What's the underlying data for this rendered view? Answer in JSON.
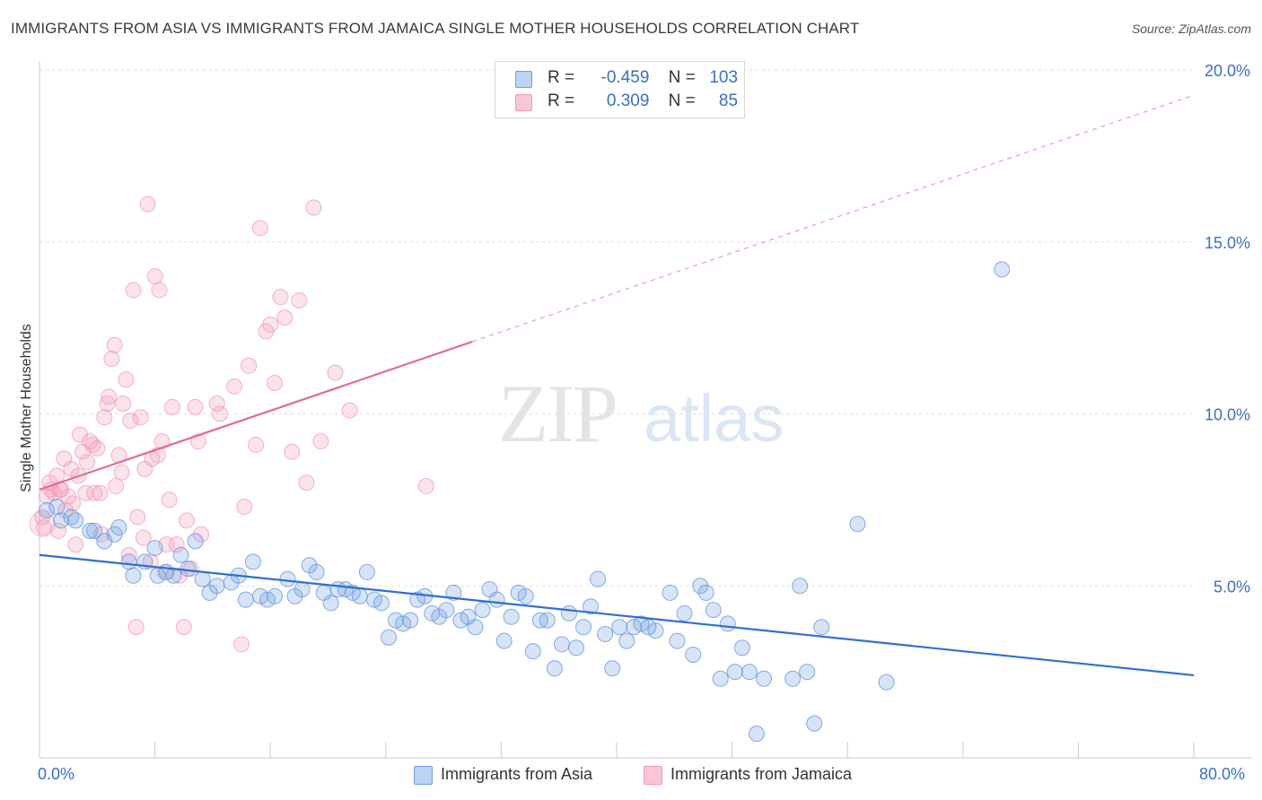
{
  "header": {
    "title": "IMMIGRANTS FROM ASIA VS IMMIGRANTS FROM JAMAICA SINGLE MOTHER HOUSEHOLDS CORRELATION CHART",
    "source": "Source: ZipAtlas.com"
  },
  "watermark": {
    "zip": "ZIP",
    "atlas": "atlas"
  },
  "legend_top": {
    "rows": [
      {
        "r_label": "R =",
        "r_value": "-0.459",
        "n_label": "N =",
        "n_value": "103"
      },
      {
        "r_label": "R =",
        "r_value": "0.309",
        "n_label": "N =",
        "n_value": "85"
      }
    ]
  },
  "chart_data": {
    "type": "scatter",
    "title": "IMMIGRANTS FROM ASIA VS IMMIGRANTS FROM JAMAICA SINGLE MOTHER HOUSEHOLDS CORRELATION CHART",
    "xlabel": "",
    "ylabel": "Single Mother Households",
    "xlim": [
      0,
      80
    ],
    "ylim": [
      0,
      20
    ],
    "x_tick_labels": [
      "0.0%",
      "80.0%"
    ],
    "y_ticks": [
      5,
      10,
      15,
      20
    ],
    "y_tick_labels": [
      "5.0%",
      "10.0%",
      "15.0%",
      "20.0%"
    ],
    "grid": true,
    "legend_position": "bottom",
    "colors": {
      "asia": "#6f9ee0",
      "jamaica": "#f29ab8",
      "asia_line": "#2f6fd0",
      "jamaica_line": "#e26a96"
    },
    "series": [
      {
        "name": "Immigrants from Asia",
        "r": -0.459,
        "n": 103,
        "trend": {
          "x": [
            0,
            80
          ],
          "y": [
            5.9,
            2.4
          ]
        },
        "points": [
          [
            0.5,
            7.2
          ],
          [
            1.2,
            7.3
          ],
          [
            1.5,
            6.9
          ],
          [
            2.2,
            7.0
          ],
          [
            2.5,
            6.9
          ],
          [
            3.5,
            6.6
          ],
          [
            3.8,
            6.6
          ],
          [
            4.5,
            6.3
          ],
          [
            5.2,
            6.5
          ],
          [
            5.5,
            6.7
          ],
          [
            6.2,
            5.7
          ],
          [
            6.5,
            5.3
          ],
          [
            7.3,
            5.7
          ],
          [
            8.0,
            6.1
          ],
          [
            8.2,
            5.3
          ],
          [
            8.8,
            5.4
          ],
          [
            9.3,
            5.3
          ],
          [
            9.8,
            5.9
          ],
          [
            10.3,
            5.5
          ],
          [
            10.8,
            6.3
          ],
          [
            11.3,
            5.2
          ],
          [
            11.8,
            4.8
          ],
          [
            12.3,
            5.0
          ],
          [
            13.3,
            5.1
          ],
          [
            13.8,
            5.3
          ],
          [
            14.3,
            4.6
          ],
          [
            14.8,
            5.7
          ],
          [
            15.3,
            4.7
          ],
          [
            15.8,
            4.6
          ],
          [
            16.3,
            4.7
          ],
          [
            17.2,
            5.2
          ],
          [
            17.7,
            4.7
          ],
          [
            18.2,
            4.9
          ],
          [
            18.7,
            5.6
          ],
          [
            19.2,
            5.4
          ],
          [
            19.7,
            4.8
          ],
          [
            20.2,
            4.5
          ],
          [
            20.7,
            4.9
          ],
          [
            21.2,
            4.9
          ],
          [
            21.7,
            4.8
          ],
          [
            22.2,
            4.7
          ],
          [
            22.7,
            5.4
          ],
          [
            23.2,
            4.6
          ],
          [
            23.7,
            4.5
          ],
          [
            24.2,
            3.5
          ],
          [
            24.7,
            4.0
          ],
          [
            25.2,
            3.9
          ],
          [
            25.7,
            4.0
          ],
          [
            26.2,
            4.6
          ],
          [
            26.7,
            4.7
          ],
          [
            27.2,
            4.2
          ],
          [
            27.7,
            4.1
          ],
          [
            28.2,
            4.3
          ],
          [
            28.7,
            4.8
          ],
          [
            29.2,
            4.0
          ],
          [
            29.7,
            4.1
          ],
          [
            30.2,
            3.8
          ],
          [
            30.7,
            4.3
          ],
          [
            31.2,
            4.9
          ],
          [
            31.7,
            4.6
          ],
          [
            32.2,
            3.4
          ],
          [
            32.7,
            4.1
          ],
          [
            33.2,
            4.8
          ],
          [
            33.7,
            4.7
          ],
          [
            34.2,
            3.1
          ],
          [
            34.7,
            4.0
          ],
          [
            35.2,
            4.0
          ],
          [
            35.7,
            2.6
          ],
          [
            36.2,
            3.3
          ],
          [
            36.7,
            4.2
          ],
          [
            37.2,
            3.2
          ],
          [
            37.7,
            3.8
          ],
          [
            38.2,
            4.4
          ],
          [
            38.7,
            5.2
          ],
          [
            39.2,
            3.6
          ],
          [
            39.7,
            2.6
          ],
          [
            40.2,
            3.8
          ],
          [
            40.7,
            3.4
          ],
          [
            41.2,
            3.8
          ],
          [
            41.7,
            3.9
          ],
          [
            42.2,
            3.8
          ],
          [
            42.7,
            3.7
          ],
          [
            43.7,
            4.8
          ],
          [
            44.2,
            3.4
          ],
          [
            44.7,
            4.2
          ],
          [
            45.3,
            3.0
          ],
          [
            45.8,
            5.0
          ],
          [
            46.2,
            4.8
          ],
          [
            46.7,
            4.3
          ],
          [
            47.2,
            2.3
          ],
          [
            47.7,
            3.9
          ],
          [
            48.2,
            2.5
          ],
          [
            48.7,
            3.2
          ],
          [
            49.2,
            2.5
          ],
          [
            49.7,
            0.7
          ],
          [
            50.2,
            2.3
          ],
          [
            52.2,
            2.3
          ],
          [
            52.7,
            5.0
          ],
          [
            53.2,
            2.5
          ],
          [
            53.7,
            1.0
          ],
          [
            54.2,
            3.8
          ],
          [
            56.7,
            6.8
          ],
          [
            58.7,
            2.2
          ],
          [
            66.7,
            14.2
          ]
        ]
      },
      {
        "name": "Immigrants from Jamaica",
        "r": 0.309,
        "n": 85,
        "trend": {
          "x": [
            0,
            30
          ],
          "y": [
            7.8,
            12.1
          ]
        },
        "points": [
          [
            0.2,
            7.0
          ],
          [
            0.3,
            6.7
          ],
          [
            0.5,
            7.6
          ],
          [
            0.7,
            8.0
          ],
          [
            0.8,
            7.8
          ],
          [
            1.0,
            7.7
          ],
          [
            1.2,
            8.2
          ],
          [
            1.3,
            6.6
          ],
          [
            1.5,
            7.8
          ],
          [
            1.7,
            8.7
          ],
          [
            1.8,
            7.2
          ],
          [
            2.0,
            7.6
          ],
          [
            2.2,
            8.4
          ],
          [
            2.3,
            7.4
          ],
          [
            2.5,
            6.2
          ],
          [
            2.7,
            8.2
          ],
          [
            2.8,
            9.4
          ],
          [
            3.0,
            8.9
          ],
          [
            3.2,
            7.7
          ],
          [
            3.3,
            8.6
          ],
          [
            3.5,
            9.2
          ],
          [
            3.7,
            9.1
          ],
          [
            3.8,
            7.7
          ],
          [
            4.0,
            9.0
          ],
          [
            4.2,
            7.7
          ],
          [
            4.3,
            6.5
          ],
          [
            4.5,
            9.9
          ],
          [
            4.7,
            10.3
          ],
          [
            4.8,
            10.5
          ],
          [
            5.0,
            11.6
          ],
          [
            5.2,
            12.0
          ],
          [
            5.3,
            7.9
          ],
          [
            5.5,
            8.8
          ],
          [
            5.7,
            8.3
          ],
          [
            5.8,
            10.3
          ],
          [
            6.0,
            11.0
          ],
          [
            6.2,
            5.9
          ],
          [
            6.3,
            9.8
          ],
          [
            6.5,
            13.6
          ],
          [
            6.7,
            3.8
          ],
          [
            6.8,
            7.0
          ],
          [
            7.0,
            9.9
          ],
          [
            7.2,
            6.4
          ],
          [
            7.3,
            8.4
          ],
          [
            7.5,
            16.1
          ],
          [
            7.7,
            5.7
          ],
          [
            7.8,
            8.7
          ],
          [
            8.0,
            14.0
          ],
          [
            8.2,
            8.8
          ],
          [
            8.3,
            13.6
          ],
          [
            8.5,
            9.2
          ],
          [
            8.7,
            5.4
          ],
          [
            8.8,
            6.2
          ],
          [
            9.0,
            7.5
          ],
          [
            9.2,
            10.2
          ],
          [
            9.5,
            6.2
          ],
          [
            9.7,
            5.3
          ],
          [
            10.0,
            3.8
          ],
          [
            10.2,
            6.9
          ],
          [
            10.5,
            5.5
          ],
          [
            10.8,
            10.2
          ],
          [
            11.0,
            9.2
          ],
          [
            11.2,
            6.5
          ],
          [
            12.3,
            10.3
          ],
          [
            12.5,
            10.0
          ],
          [
            13.5,
            10.8
          ],
          [
            14.0,
            3.3
          ],
          [
            14.2,
            7.3
          ],
          [
            14.5,
            11.4
          ],
          [
            15.0,
            9.1
          ],
          [
            15.3,
            15.4
          ],
          [
            15.7,
            12.4
          ],
          [
            16.0,
            12.6
          ],
          [
            16.3,
            10.9
          ],
          [
            16.7,
            13.4
          ],
          [
            17.0,
            12.8
          ],
          [
            17.5,
            8.9
          ],
          [
            18.0,
            13.3
          ],
          [
            18.5,
            8.0
          ],
          [
            19.0,
            16.0
          ],
          [
            19.5,
            9.2
          ],
          [
            20.5,
            11.2
          ],
          [
            21.5,
            10.1
          ],
          [
            26.8,
            7.9
          ],
          [
            1.4,
            7.8
          ]
        ]
      }
    ]
  },
  "legend_bottom": {
    "items": [
      {
        "label": "Immigrants from Asia"
      },
      {
        "label": "Immigrants from Jamaica"
      }
    ]
  }
}
